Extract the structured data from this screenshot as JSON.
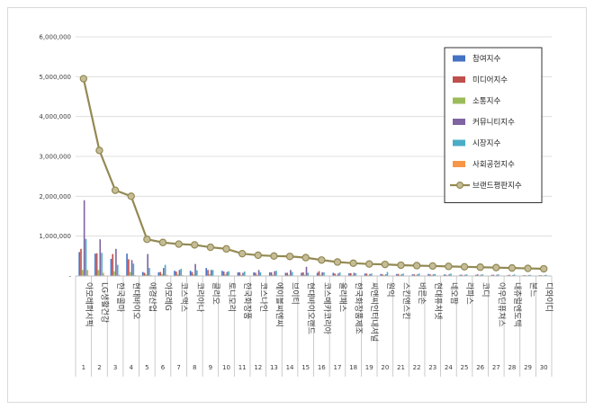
{
  "chart_data": {
    "type": "bar",
    "categories": [
      "아모레퍼시픽",
      "LG생활건강",
      "한국콜마",
      "현대바이오",
      "애경산업",
      "아모레G",
      "코스맥스",
      "코리아나",
      "클리오",
      "토니모리",
      "한국화장품",
      "코스나인",
      "에이블씨엔씨",
      "브이티",
      "현대바이오랜드",
      "코스메카코리아",
      "올리패스",
      "한국화장품제조",
      "씨앤씨인터내셔널",
      "원익",
      "스킨앤스킨",
      "바른손",
      "현대퓨처넷",
      "네오팜",
      "라파스",
      "코디",
      "아우딘퓨쳐스",
      "내츄럴엔도텍",
      "본느",
      "디와이디"
    ],
    "index_labels": [
      "1",
      "2",
      "3",
      "4",
      "5",
      "6",
      "7",
      "8",
      "9",
      "10",
      "11",
      "12",
      "13",
      "14",
      "15",
      "16",
      "17",
      "18",
      "19",
      "20",
      "21",
      "22",
      "23",
      "24",
      "25",
      "26",
      "27",
      "28",
      "29",
      "30"
    ],
    "yticks": [
      "6,000,000",
      "5,000,000",
      "4,000,000",
      "3,000,000",
      "2,000,000",
      "1,000,000",
      "-"
    ],
    "ylim": [
      0,
      6000000
    ],
    "legend_position": "top-right",
    "series": [
      {
        "name": "참여지수",
        "color": "#4472c4",
        "kind": "bar",
        "values": [
          600000,
          560000,
          430000,
          560000,
          100000,
          90000,
          130000,
          130000,
          200000,
          130000,
          90000,
          90000,
          90000,
          80000,
          80000,
          80000,
          80000,
          70000,
          60000,
          50000,
          50000,
          40000,
          50000,
          40000,
          30000,
          30000,
          30000,
          20000,
          20000,
          20000
        ]
      },
      {
        "name": "미디어지수",
        "color": "#c0504d",
        "kind": "bar",
        "values": [
          680000,
          570000,
          550000,
          420000,
          80000,
          100000,
          110000,
          100000,
          150000,
          110000,
          90000,
          80000,
          90000,
          80000,
          90000,
          120000,
          60000,
          70000,
          60000,
          40000,
          50000,
          40000,
          40000,
          30000,
          30000,
          40000,
          30000,
          30000,
          20000,
          20000
        ]
      },
      {
        "name": "소통지수",
        "color": "#9bbb59",
        "kind": "bar",
        "values": [
          150000,
          150000,
          120000,
          100000,
          40000,
          50000,
          40000,
          40000,
          50000,
          40000,
          30000,
          30000,
          30000,
          30000,
          30000,
          30000,
          20000,
          20000,
          20000,
          20000,
          20000,
          20000,
          20000,
          15000,
          15000,
          15000,
          10000,
          10000,
          10000,
          10000
        ]
      },
      {
        "name": "커뮤니티지수",
        "color": "#8064a2",
        "kind": "bar",
        "values": [
          1900000,
          920000,
          680000,
          400000,
          550000,
          200000,
          150000,
          300000,
          150000,
          100000,
          80000,
          150000,
          120000,
          150000,
          230000,
          90000,
          60000,
          80000,
          50000,
          40000,
          40000,
          40000,
          40000,
          40000,
          30000,
          30000,
          30000,
          20000,
          20000,
          20000
        ]
      },
      {
        "name": "시장지수",
        "color": "#4bacc6",
        "kind": "bar",
        "values": [
          930000,
          580000,
          280000,
          310000,
          200000,
          280000,
          180000,
          140000,
          150000,
          120000,
          110000,
          90000,
          130000,
          100000,
          80000,
          90000,
          90000,
          70000,
          60000,
          100000,
          60000,
          60000,
          50000,
          60000,
          40000,
          40000,
          40000,
          40000,
          30000,
          30000
        ]
      },
      {
        "name": "사회공헌지수",
        "color": "#f79646",
        "kind": "bar",
        "values": [
          150000,
          80000,
          30000,
          20000,
          20000,
          30000,
          20000,
          10000,
          10000,
          10000,
          10000,
          10000,
          10000,
          10000,
          10000,
          10000,
          10000,
          10000,
          10000,
          10000,
          10000,
          10000,
          10000,
          10000,
          10000,
          10000,
          10000,
          10000,
          10000,
          10000
        ]
      },
      {
        "name": "브랜드평판지수",
        "color": "#938953",
        "kind": "line",
        "values": [
          4950000,
          3150000,
          2150000,
          2000000,
          920000,
          840000,
          800000,
          780000,
          720000,
          680000,
          560000,
          520000,
          500000,
          490000,
          460000,
          400000,
          350000,
          320000,
          300000,
          290000,
          270000,
          260000,
          250000,
          240000,
          230000,
          220000,
          210000,
          200000,
          190000,
          180000
        ]
      }
    ]
  }
}
